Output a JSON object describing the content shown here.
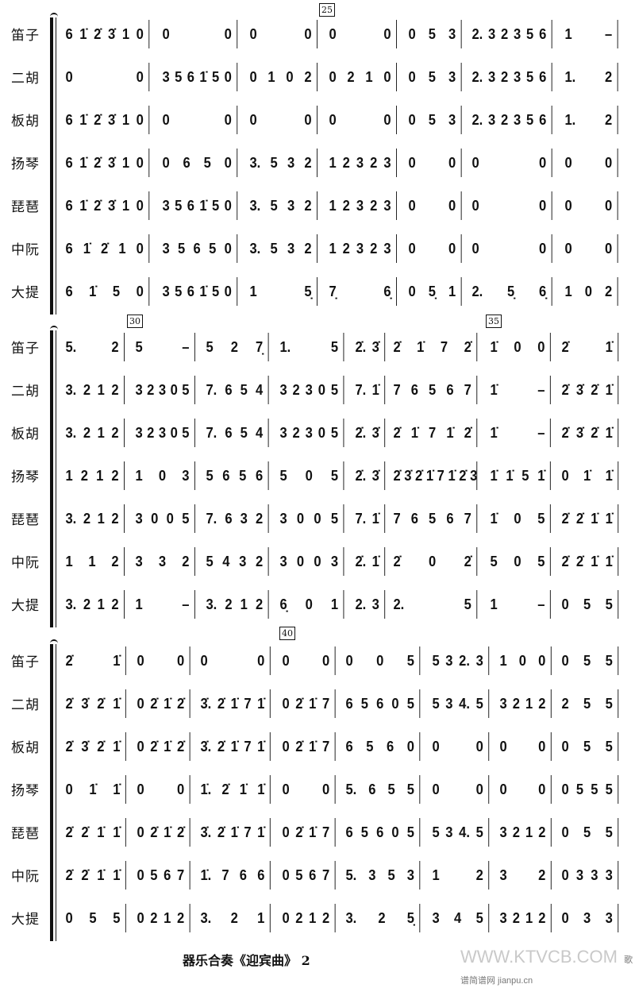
{
  "instruments": [
    "笛子",
    "二胡",
    "板胡",
    "扬琴",
    "琵琶",
    "中阮",
    "大提"
  ],
  "measure_numbers": [
    "25",
    "30",
    "35",
    "40"
  ],
  "systems": [
    {
      "rows": [
        [
          "6 1̇ 2̇ 3̇ 1 0",
          "0 0",
          "0 0",
          "0 0",
          "0 5 3",
          "2. 3 2 3 5 6",
          "1 –"
        ],
        [
          "0 0",
          "3 5 6 1̇ 5 0",
          "0 1 0 2",
          "0 2 1 0",
          "0 5 3",
          "2. 3 2 3 5 6",
          "1. 2"
        ],
        [
          "6 1̇ 2̇ 3̇ 1 0",
          "0 0",
          "0 0",
          "0 0",
          "0 5 3",
          "2. 3 2 3 5 6",
          "1. 2"
        ],
        [
          "6 1̇ 2̇ 3̇ 1 0",
          "0 6 5 0",
          "3. 5 3 2",
          "1 2 3 2 3",
          "0 0",
          "0 0",
          "0 0"
        ],
        [
          "6 1̇ 2̇ 3̇ 1 0",
          "3 5 6 1̇ 5 0",
          "3. 5 3 2",
          "1 2 3 2 3",
          "0 0",
          "0 0",
          "0 0"
        ],
        [
          "6 1̇ 2̇ 1 0",
          "3 5 6 5 0",
          "3. 5 3 2",
          "1 2 3 2 3",
          "0 0",
          "0 0",
          "0 0"
        ],
        [
          "6 1̇ 5 0",
          "3 5 6 1̇ 5 0",
          "1 5̣",
          "7̣ 6̣",
          "0 5̣ 1",
          "2. 5̣ 6̣",
          "1 0 2"
        ]
      ]
    },
    {
      "rows": [
        [
          "5. 2",
          "5 –",
          "5 2 7̣",
          "1. 5",
          "2̇. 3̇",
          "2̇ 1̇ 7 2̇",
          "1̇ 0 0",
          "2̇ 1̇"
        ],
        [
          "3. 2 1 2",
          "3 2 3 0 5",
          "7. 6 5 4",
          "3 2 3 0 5",
          "7. 1̇",
          "7 6 5 6 7",
          "1̇ –",
          "2̇ 3̇ 2̇ 1̇"
        ],
        [
          "3. 2 1 2",
          "3 2 3 0 5",
          "7. 6 5 4",
          "3 2 3 0 5",
          "2̇. 3̇",
          "2̇ 1̇ 7 1̇ 2̇",
          "1̇ –",
          "2̇ 3̇ 2̇ 1̇"
        ],
        [
          "1 2 1 2",
          "1 0 3",
          "5 6 5 6",
          "5 0 5",
          "2̇. 3̇",
          "2̇ 3̇ 2̇ 1̇ 7 1̇ 2̇ 3̇",
          "1̇ 1̇ 5 1̇",
          "0 1̇ 1̇"
        ],
        [
          "3. 2 1 2",
          "3 0 0 5",
          "7. 6 3 2",
          "3 0 0 5",
          "7. 1̇",
          "7 6 5 6 7",
          "1̇ 0 5",
          "2̇ 2̇ 1̇ 1̇"
        ],
        [
          "1 1 2",
          "3 3 2",
          "5 4 3 2",
          "3 0 0 3",
          "2̇. 1̇",
          "2̇ 0 2̇",
          "5 0 5",
          "2̇ 2̇ 1̇ 1̇"
        ],
        [
          "3. 2 1 2",
          "1 –",
          "3. 2 1 2",
          "6̣ 0 1",
          "2. 3",
          "2. 5",
          "1 –",
          "0 5 5"
        ]
      ]
    },
    {
      "rows": [
        [
          "2̇ 1̇",
          "0 0",
          "0 0",
          "0 0",
          "0 0 5",
          "5 3 2. 3",
          "1 0 0",
          "0 5 5"
        ],
        [
          "2̇ 3̇ 2̇ 1̇",
          "0 2̇ 1̇ 2̇",
          "3̇. 2̇ 1̇ 7 1̇",
          "0 2̇ 1̇ 7",
          "6 5 6 0 5",
          "5 3 4. 5",
          "3 2 1 2",
          "2 5 5"
        ],
        [
          "2̇ 3̇ 2̇ 1̇",
          "0 2̇ 1̇ 2̇",
          "3̇. 2̇ 1̇ 7 1̇",
          "0 2̇ 1̇ 7",
          "6 5 6 0",
          "0 0",
          "0 0",
          "0 5 5"
        ],
        [
          "0 1̇ 1̇",
          "0 0",
          "1̇. 2̇ 1̇ 1̇",
          "0 0",
          "5. 6 5 5",
          "0 0",
          "0 0",
          "0 5 5 5"
        ],
        [
          "2̇ 2̇ 1̇ 1̇",
          "0 2̇ 1̇ 2̇",
          "3̇. 2̇ 1̇ 7 1̇",
          "0 2̇ 1̇ 7",
          "6 5 6 0 5",
          "5 3 4. 5",
          "3 2 1 2",
          "0 5 5"
        ],
        [
          "2̇ 2̇ 1̇ 1̇",
          "0 5 6 7",
          "1̇. 7 6 6",
          "0 5 6 7",
          "5. 3 5 3",
          "1 2",
          "3 2",
          "0 3 3 3"
        ],
        [
          "0 5 5",
          "0 2 1 2",
          "3. 2 1",
          "0 2 1 2",
          "3. 2 5̣",
          "3 4 5",
          "3 2 1 2",
          "0 3 3"
        ]
      ]
    }
  ],
  "footer": {
    "title": "器乐合奏《迎宾曲》",
    "page": "2"
  },
  "watermark": {
    "site": "WWW.KTVCB.COM",
    "sub": "歌谱简谱网 jianpu.cn"
  }
}
